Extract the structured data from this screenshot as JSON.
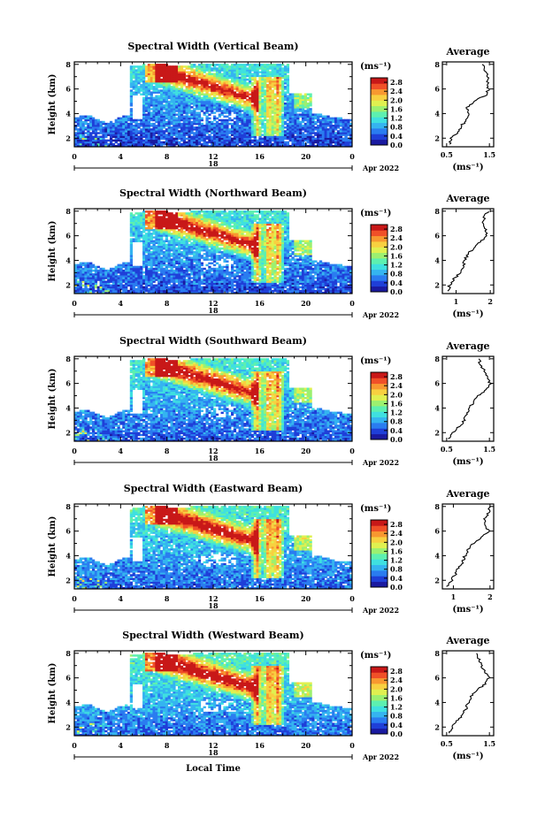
{
  "colors": {
    "scale": [
      "#1a1aa0",
      "#1f3fd8",
      "#2a7cf0",
      "#35b4f0",
      "#3fe0e0",
      "#5df0b0",
      "#9cf070",
      "#e0f050",
      "#f8d040",
      "#f89830",
      "#f05028",
      "#c81818"
    ]
  },
  "chart_data": [
    {
      "type": "heatmap",
      "title": "Spectral Width (Vertical Beam)",
      "ylabel": "Height (km)",
      "xlabel": "",
      "x_ticks": [
        "0",
        "4",
        "8",
        "12",
        "16",
        "20",
        "0"
      ],
      "day": "18",
      "date": "Apr 2022",
      "colorbar_unit": "(ms⁻¹)",
      "colorbar_ticks": [
        "2.8",
        "2.4",
        "2.0",
        "1.6",
        "1.2",
        "0.8",
        "0.4",
        "0.0"
      ],
      "y_ticks": [
        "8",
        "6",
        "4",
        "2"
      ],
      "xlim": [
        0,
        24
      ],
      "ylim": [
        1.3,
        8.2
      ],
      "clim": [
        0,
        3.0
      ],
      "average": {
        "title": "Average",
        "xlabel": "(ms⁻¹)",
        "x_ticks": [
          "0.5",
          "1.5"
        ],
        "x_tick_values": [
          0.5,
          1.5
        ],
        "xlim": [
          0.4,
          1.6
        ],
        "y_ticks": [
          "8",
          "6",
          "4",
          "2"
        ],
        "height": [
          1.5,
          2.0,
          2.5,
          3.0,
          3.5,
          4.0,
          4.5,
          5.0,
          5.5,
          6.0,
          6.5,
          7.0,
          7.5,
          8.0
        ],
        "width": [
          0.55,
          0.62,
          0.75,
          0.85,
          0.96,
          1.0,
          0.98,
          1.15,
          1.42,
          1.48,
          1.45,
          1.47,
          1.38,
          1.33
        ]
      }
    },
    {
      "type": "heatmap",
      "title": "Spectral Width (Northward Beam)",
      "ylabel": "Height (km)",
      "xlabel": "",
      "x_ticks": [
        "0",
        "4",
        "8",
        "12",
        "16",
        "20",
        "0"
      ],
      "day": "18",
      "date": "Apr 2022",
      "colorbar_unit": "(ms⁻¹)",
      "colorbar_ticks": [
        "2.8",
        "2.4",
        "2.0",
        "1.6",
        "1.2",
        "0.8",
        "0.4",
        "0.0"
      ],
      "y_ticks": [
        "8",
        "6",
        "4",
        "2"
      ],
      "xlim": [
        0,
        24
      ],
      "ylim": [
        1.3,
        8.2
      ],
      "clim": [
        0,
        3.0
      ],
      "average": {
        "title": "Average",
        "xlabel": "(ms⁻¹)",
        "x_ticks": [
          "1",
          "2"
        ],
        "x_tick_values": [
          1,
          2
        ],
        "xlim": [
          0.6,
          2.1
        ],
        "y_ticks": [
          "8",
          "6",
          "4",
          "2"
        ],
        "height": [
          1.5,
          2.0,
          2.5,
          3.0,
          3.5,
          4.0,
          4.5,
          5.0,
          5.5,
          6.0,
          6.5,
          7.0,
          7.5,
          8.0
        ],
        "width": [
          0.75,
          0.82,
          0.95,
          1.1,
          1.22,
          1.25,
          1.35,
          1.5,
          1.7,
          1.92,
          1.85,
          1.8,
          1.82,
          1.95
        ]
      }
    },
    {
      "type": "heatmap",
      "title": "Spectral Width (Southward Beam)",
      "ylabel": "Height (km)",
      "xlabel": "",
      "x_ticks": [
        "0",
        "4",
        "8",
        "12",
        "16",
        "20",
        "0"
      ],
      "day": "18",
      "date": "Apr 2022",
      "colorbar_unit": "(ms⁻¹)",
      "colorbar_ticks": [
        "2.8",
        "2.4",
        "2.0",
        "1.6",
        "1.2",
        "0.8",
        "0.4",
        "0.0"
      ],
      "y_ticks": [
        "8",
        "6",
        "4",
        "2"
      ],
      "xlim": [
        0,
        24
      ],
      "ylim": [
        1.3,
        8.2
      ],
      "clim": [
        0,
        3.0
      ],
      "average": {
        "title": "Average",
        "xlabel": "(ms⁻¹)",
        "x_ticks": [
          "0.5",
          "1.5"
        ],
        "x_tick_values": [
          0.5,
          1.5
        ],
        "xlim": [
          0.4,
          1.6
        ],
        "y_ticks": [
          "8",
          "6",
          "4",
          "2"
        ],
        "height": [
          1.5,
          2.0,
          2.5,
          3.0,
          3.5,
          4.0,
          4.5,
          5.0,
          5.5,
          6.0,
          6.5,
          7.0,
          7.5,
          8.0
        ],
        "width": [
          0.55,
          0.65,
          0.8,
          0.9,
          0.98,
          1.05,
          1.12,
          1.25,
          1.4,
          1.52,
          1.45,
          1.4,
          1.3,
          1.25
        ]
      }
    },
    {
      "type": "heatmap",
      "title": "Spectral Width (Eastward Beam)",
      "ylabel": "Height (km)",
      "xlabel": "",
      "x_ticks": [
        "0",
        "4",
        "8",
        "12",
        "16",
        "20",
        "0"
      ],
      "day": "18",
      "date": "Apr 2022",
      "colorbar_unit": "(ms⁻¹)",
      "colorbar_ticks": [
        "2.8",
        "2.4",
        "2.0",
        "1.6",
        "1.2",
        "0.8",
        "0.4",
        "0.0"
      ],
      "y_ticks": [
        "8",
        "6",
        "4",
        "2"
      ],
      "xlim": [
        0,
        24
      ],
      "ylim": [
        1.3,
        8.2
      ],
      "clim": [
        0,
        3.0
      ],
      "average": {
        "title": "Average",
        "xlabel": "(ms⁻¹)",
        "x_ticks": [
          "1",
          "2"
        ],
        "x_tick_values": [
          1,
          2
        ],
        "xlim": [
          0.7,
          2.1
        ],
        "y_ticks": [
          "8",
          "6",
          "4",
          "2"
        ],
        "height": [
          1.5,
          2.0,
          2.5,
          3.0,
          3.5,
          4.0,
          4.5,
          5.0,
          5.5,
          6.0,
          6.5,
          7.0,
          7.5,
          8.0
        ],
        "width": [
          0.85,
          0.95,
          1.05,
          1.15,
          1.25,
          1.32,
          1.4,
          1.55,
          1.75,
          1.95,
          1.9,
          1.85,
          1.95,
          2.0
        ]
      }
    },
    {
      "type": "heatmap",
      "title": "Spectral Width (Westward Beam)",
      "ylabel": "Height (km)",
      "xlabel": "Local Time",
      "x_ticks": [
        "0",
        "4",
        "8",
        "12",
        "16",
        "20",
        "0"
      ],
      "day": "18",
      "date": "Apr 2022",
      "colorbar_unit": "(ms⁻¹)",
      "colorbar_ticks": [
        "2.8",
        "2.4",
        "2.0",
        "1.6",
        "1.2",
        "0.8",
        "0.4",
        "0.0"
      ],
      "y_ticks": [
        "8",
        "6",
        "4",
        "2"
      ],
      "xlim": [
        0,
        24
      ],
      "ylim": [
        1.3,
        8.2
      ],
      "clim": [
        0,
        3.0
      ],
      "average": {
        "title": "Average",
        "xlabel": "(ms⁻¹)",
        "x_ticks": [
          "0.5",
          "1.5"
        ],
        "x_tick_values": [
          0.5,
          1.5
        ],
        "xlim": [
          0.4,
          1.6
        ],
        "y_ticks": [
          "8",
          "6",
          "4",
          "2"
        ],
        "height": [
          1.5,
          2.0,
          2.5,
          3.0,
          3.5,
          4.0,
          4.5,
          5.0,
          5.5,
          6.0,
          6.5,
          7.0,
          7.5,
          8.0
        ],
        "width": [
          0.55,
          0.62,
          0.75,
          0.88,
          0.95,
          1.0,
          1.08,
          1.22,
          1.4,
          1.5,
          1.38,
          1.3,
          1.25,
          1.2
        ]
      }
    }
  ]
}
